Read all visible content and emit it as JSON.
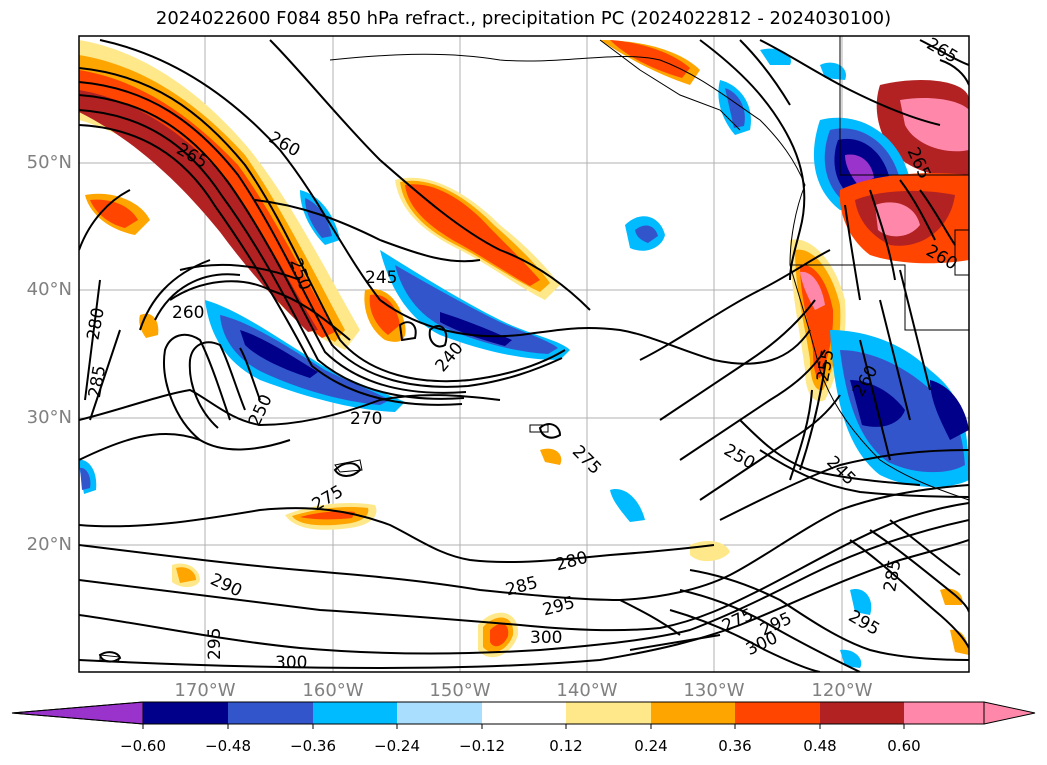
{
  "title": "2024022600 F084 850 hPa refract., precipitation PC (2024022812 - 2024030100)",
  "lat_labels": [
    "50°N",
    "40°N",
    "30°N",
    "20°N"
  ],
  "lon_labels": [
    "170°W",
    "160°W",
    "150°W",
    "140°W",
    "130°W",
    "120°W"
  ],
  "colorbar": {
    "ticks": [
      "−0.60",
      "−0.48",
      "−0.36",
      "−0.24",
      "−0.12",
      "0.12",
      "0.24",
      "0.36",
      "0.48",
      "0.60"
    ],
    "colors": [
      "#9933cc",
      "#00008b",
      "#3355cc",
      "#00bbff",
      "#aadeff",
      "#ffffff",
      "#ffe88a",
      "#ffa500",
      "#ff4500",
      "#b22222",
      "#ff88aa"
    ]
  },
  "contour_labels": [
    "265",
    "260",
    "250",
    "245",
    "240",
    "260",
    "270",
    "250",
    "280",
    "285",
    "275",
    "275",
    "280",
    "285",
    "295",
    "300",
    "290",
    "295",
    "300",
    "250",
    "245",
    "255",
    "260",
    "275",
    "295",
    "300",
    "285",
    "295",
    "265",
    "260",
    "265"
  ]
}
